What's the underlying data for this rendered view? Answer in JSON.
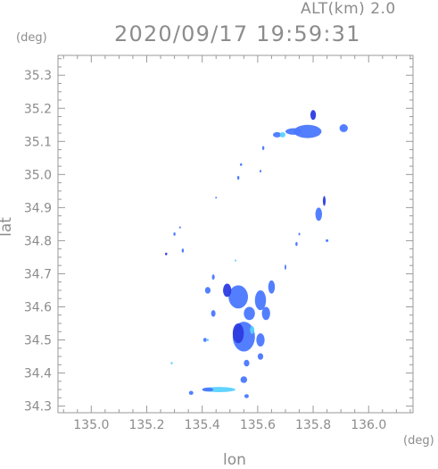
{
  "header": {
    "alt_label": "ALT(km) 2.0",
    "datetime": "2020/09/17 19:59:31"
  },
  "chart_data": {
    "type": "heatmap",
    "xlabel": "lon",
    "ylabel": "lat",
    "x_unit": "(deg)",
    "y_unit": "(deg)",
    "xlim": [
      134.88,
      136.16
    ],
    "ylim": [
      34.28,
      35.36
    ],
    "x_ticks": [
      "135.0",
      "135.2",
      "135.4",
      "135.6",
      "135.8",
      "136.0"
    ],
    "y_ticks": [
      "34.3",
      "34.4",
      "34.5",
      "34.6",
      "34.7",
      "34.8",
      "34.9",
      "35.0",
      "35.1",
      "35.2",
      "35.3"
    ],
    "grid": false,
    "colors": {
      "low": "#5ad2ff",
      "mid": "#4a78ff",
      "high": "#2c3ce0",
      "axis": "#9a9a9a"
    },
    "echoes": [
      {
        "lon": 135.78,
        "lat": 35.13,
        "rlon": 0.05,
        "rlat": 0.02,
        "level": "mid"
      },
      {
        "lon": 135.73,
        "lat": 35.13,
        "rlon": 0.03,
        "rlat": 0.01,
        "level": "mid"
      },
      {
        "lon": 135.8,
        "lat": 35.18,
        "rlon": 0.01,
        "rlat": 0.015,
        "level": "high"
      },
      {
        "lon": 135.91,
        "lat": 35.14,
        "rlon": 0.015,
        "rlat": 0.012,
        "level": "mid"
      },
      {
        "lon": 135.67,
        "lat": 35.12,
        "rlon": 0.015,
        "rlat": 0.008,
        "level": "mid"
      },
      {
        "lon": 135.69,
        "lat": 35.12,
        "rlon": 0.01,
        "rlat": 0.008,
        "level": "low"
      },
      {
        "lon": 135.62,
        "lat": 35.08,
        "rlon": 0.004,
        "rlat": 0.006,
        "level": "mid"
      },
      {
        "lon": 135.61,
        "lat": 35.01,
        "rlon": 0.003,
        "rlat": 0.004,
        "level": "mid"
      },
      {
        "lon": 135.54,
        "lat": 35.03,
        "rlon": 0.004,
        "rlat": 0.004,
        "level": "mid"
      },
      {
        "lon": 135.53,
        "lat": 34.99,
        "rlon": 0.004,
        "rlat": 0.006,
        "level": "mid"
      },
      {
        "lon": 135.45,
        "lat": 34.93,
        "rlon": 0.002,
        "rlat": 0.002,
        "level": "mid"
      },
      {
        "lon": 135.82,
        "lat": 34.88,
        "rlon": 0.012,
        "rlat": 0.02,
        "level": "mid"
      },
      {
        "lon": 135.84,
        "lat": 34.92,
        "rlon": 0.005,
        "rlat": 0.015,
        "level": "high"
      },
      {
        "lon": 135.85,
        "lat": 34.8,
        "rlon": 0.005,
        "rlat": 0.004,
        "level": "mid"
      },
      {
        "lon": 135.3,
        "lat": 34.82,
        "rlon": 0.004,
        "rlat": 0.005,
        "level": "mid"
      },
      {
        "lon": 135.32,
        "lat": 34.84,
        "rlon": 0.002,
        "rlat": 0.003,
        "level": "mid"
      },
      {
        "lon": 135.33,
        "lat": 34.77,
        "rlon": 0.004,
        "rlat": 0.006,
        "level": "mid"
      },
      {
        "lon": 135.27,
        "lat": 34.76,
        "rlon": 0.004,
        "rlat": 0.004,
        "level": "high"
      },
      {
        "lon": 135.74,
        "lat": 34.79,
        "rlon": 0.004,
        "rlat": 0.006,
        "level": "mid"
      },
      {
        "lon": 135.75,
        "lat": 34.82,
        "rlon": 0.003,
        "rlat": 0.004,
        "level": "mid"
      },
      {
        "lon": 135.7,
        "lat": 34.72,
        "rlon": 0.003,
        "rlat": 0.008,
        "level": "mid"
      },
      {
        "lon": 135.52,
        "lat": 34.74,
        "rlon": 0.002,
        "rlat": 0.003,
        "level": "low"
      },
      {
        "lon": 135.53,
        "lat": 34.63,
        "rlon": 0.035,
        "rlat": 0.035,
        "level": "mid"
      },
      {
        "lon": 135.49,
        "lat": 34.65,
        "rlon": 0.015,
        "rlat": 0.02,
        "level": "high"
      },
      {
        "lon": 135.42,
        "lat": 34.65,
        "rlon": 0.01,
        "rlat": 0.01,
        "level": "mid"
      },
      {
        "lon": 135.44,
        "lat": 34.69,
        "rlon": 0.005,
        "rlat": 0.008,
        "level": "mid"
      },
      {
        "lon": 135.65,
        "lat": 34.66,
        "rlon": 0.012,
        "rlat": 0.02,
        "level": "mid"
      },
      {
        "lon": 135.61,
        "lat": 34.62,
        "rlon": 0.02,
        "rlat": 0.03,
        "level": "mid"
      },
      {
        "lon": 135.63,
        "lat": 34.58,
        "rlon": 0.015,
        "rlat": 0.02,
        "level": "mid"
      },
      {
        "lon": 135.57,
        "lat": 34.58,
        "rlon": 0.02,
        "rlat": 0.02,
        "level": "mid"
      },
      {
        "lon": 135.44,
        "lat": 34.58,
        "rlon": 0.008,
        "rlat": 0.01,
        "level": "mid"
      },
      {
        "lon": 135.55,
        "lat": 34.51,
        "rlon": 0.04,
        "rlat": 0.045,
        "level": "mid"
      },
      {
        "lon": 135.53,
        "lat": 34.52,
        "rlon": 0.02,
        "rlat": 0.03,
        "level": "high"
      },
      {
        "lon": 135.61,
        "lat": 34.5,
        "rlon": 0.015,
        "rlat": 0.02,
        "level": "mid"
      },
      {
        "lon": 135.58,
        "lat": 34.53,
        "rlon": 0.008,
        "rlat": 0.012,
        "level": "low"
      },
      {
        "lon": 135.41,
        "lat": 34.5,
        "rlon": 0.006,
        "rlat": 0.006,
        "level": "mid"
      },
      {
        "lon": 135.42,
        "lat": 34.5,
        "rlon": 0.003,
        "rlat": 0.004,
        "level": "low"
      },
      {
        "lon": 135.61,
        "lat": 34.45,
        "rlon": 0.01,
        "rlat": 0.01,
        "level": "mid"
      },
      {
        "lon": 135.56,
        "lat": 34.43,
        "rlon": 0.01,
        "rlat": 0.01,
        "level": "mid"
      },
      {
        "lon": 135.29,
        "lat": 34.43,
        "rlon": 0.003,
        "rlat": 0.004,
        "level": "low"
      },
      {
        "lon": 135.55,
        "lat": 34.38,
        "rlon": 0.012,
        "rlat": 0.01,
        "level": "mid"
      },
      {
        "lon": 135.46,
        "lat": 34.35,
        "rlon": 0.06,
        "rlat": 0.008,
        "level": "low"
      },
      {
        "lon": 135.42,
        "lat": 34.35,
        "rlon": 0.02,
        "rlat": 0.006,
        "level": "mid"
      },
      {
        "lon": 135.36,
        "lat": 34.34,
        "rlon": 0.008,
        "rlat": 0.006,
        "level": "mid"
      },
      {
        "lon": 135.56,
        "lat": 34.33,
        "rlon": 0.008,
        "rlat": 0.006,
        "level": "mid"
      }
    ]
  }
}
